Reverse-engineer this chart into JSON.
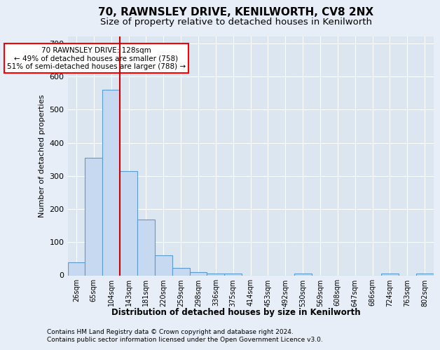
{
  "title1": "70, RAWNSLEY DRIVE, KENILWORTH, CV8 2NX",
  "title2": "Size of property relative to detached houses in Kenilworth",
  "xlabel": "Distribution of detached houses by size in Kenilworth",
  "ylabel": "Number of detached properties",
  "footer1": "Contains HM Land Registry data © Crown copyright and database right 2024.",
  "footer2": "Contains public sector information licensed under the Open Government Licence v3.0.",
  "annotation_line1": "70 RAWNSLEY DRIVE: 128sqm",
  "annotation_line2": "← 49% of detached houses are smaller (758)",
  "annotation_line3": "51% of semi-detached houses are larger (788) →",
  "bar_values": [
    40,
    355,
    560,
    315,
    168,
    60,
    22,
    10,
    5,
    5,
    0,
    0,
    0,
    5,
    0,
    0,
    0,
    0,
    5,
    0,
    5
  ],
  "bar_labels": [
    "26sqm",
    "65sqm",
    "104sqm",
    "143sqm",
    "181sqm",
    "220sqm",
    "259sqm",
    "298sqm",
    "336sqm",
    "375sqm",
    "414sqm",
    "453sqm",
    "492sqm",
    "530sqm",
    "569sqm",
    "608sqm",
    "647sqm",
    "686sqm",
    "724sqm",
    "763sqm",
    "802sqm"
  ],
  "bar_color": "#c6d9f1",
  "bar_edge_color": "#5b9bd5",
  "redline_x": 2.5,
  "ylim": [
    0,
    720
  ],
  "yticks": [
    0,
    100,
    200,
    300,
    400,
    500,
    600,
    700
  ],
  "annotation_box_color": "#ff0000",
  "redline_color": "#cc0000",
  "bg_color": "#e8eef7",
  "plot_bg_color": "#dce6f1"
}
